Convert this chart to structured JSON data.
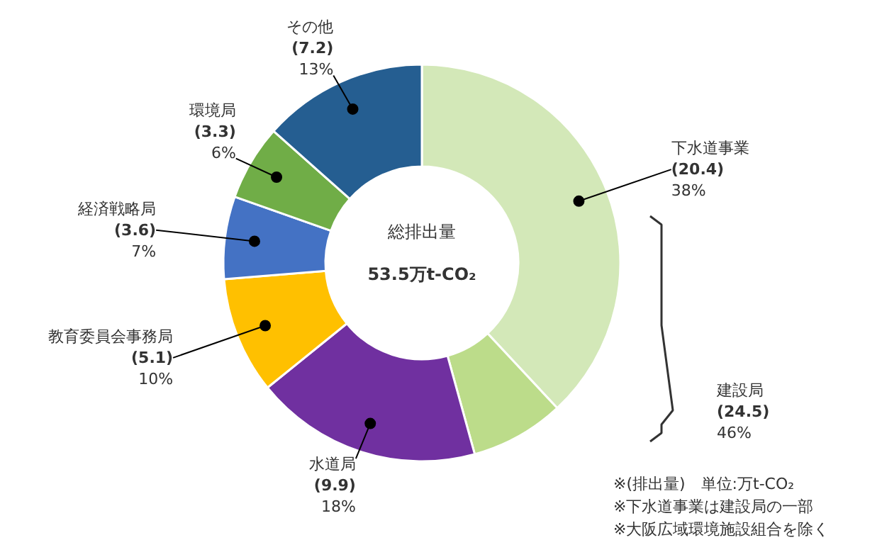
{
  "chart_data": {
    "type": "donut",
    "categories": [
      "下水道事業",
      null,
      "水道局",
      "教育委員会事務局",
      "経済戦略局",
      "環境局",
      "その他"
    ],
    "values": [
      20.4,
      4.1,
      9.9,
      5.1,
      3.6,
      3.3,
      7.2
    ],
    "colors": [
      "#d3e8b8",
      "#bcdc8a",
      "#7030a0",
      "#ffc000",
      "#4472c4",
      "#70ad47",
      "#255e91"
    ],
    "value_labels": [
      "(20.4)\n38%",
      null,
      "(9.9)\n18%",
      "(5.1)\n10%",
      "(3.6)\n7%",
      "(3.3)\n6%",
      "(7.2)\n13%"
    ],
    "annotations": [
      "総排出量",
      "53.5万t-CO₂",
      "建設局\n(24.5)\n46%",
      "※(排出量)　単位:万t-CO₂",
      "※下水道事業は建設局の一部",
      "※大阪広域環境施設組合を除く"
    ]
  }
}
